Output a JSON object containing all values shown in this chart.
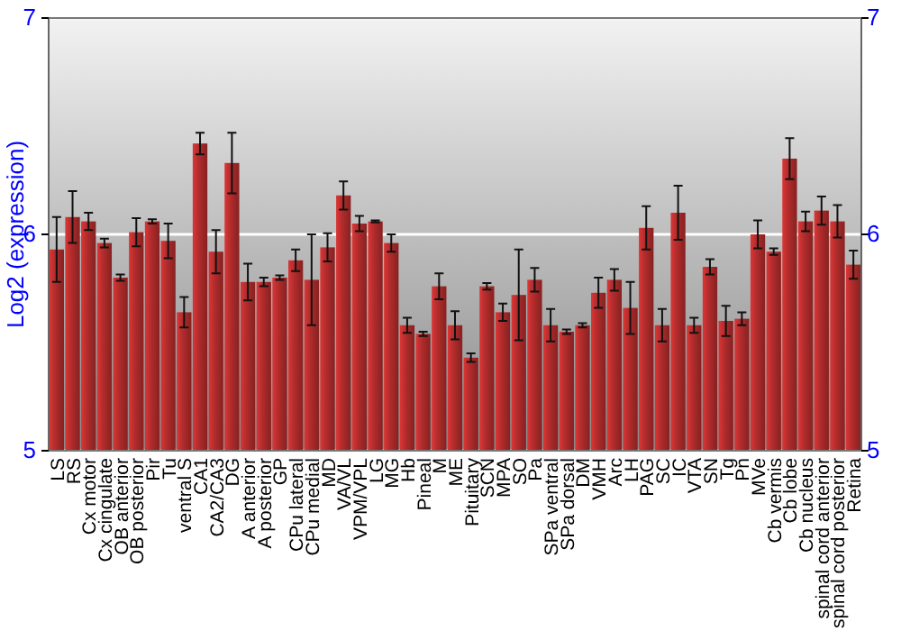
{
  "chart_data": {
    "type": "bar",
    "ylabel": "Log2 (expression)",
    "categories": [
      "LS",
      "RS",
      "Cx motor",
      "Cx cingulate",
      "OB anterior",
      "OB posterior",
      "Pir",
      "Tu",
      "ventral S",
      "CA1",
      "CA2/CA3",
      "DG",
      "A anterior",
      "A posterior",
      "GP",
      "CPu lateral",
      "CPu medial",
      "MD",
      "VA/VL",
      "VPM/VPL",
      "LG",
      "MG",
      "Hb",
      "Pineal",
      "M",
      "ME",
      "Pituitary",
      "SCN",
      "MPA",
      "SO",
      "Pa",
      "SPa ventral",
      "SPa dorsal",
      "DM",
      "VMH",
      "Arc",
      "LH",
      "PAG",
      "SC",
      "IC",
      "VTA",
      "SN",
      "Tg",
      "Pn",
      "MVe",
      "Cb vermis",
      "Cb lobe",
      "Cb nucleus",
      "spinal cord anterior",
      "spinal cord posterior",
      "Retina"
    ],
    "values": [
      5.93,
      6.08,
      6.06,
      5.96,
      5.8,
      6.01,
      6.06,
      5.97,
      5.64,
      6.42,
      5.92,
      6.33,
      5.78,
      5.78,
      5.8,
      5.88,
      5.79,
      5.94,
      6.18,
      6.05,
      6.06,
      5.96,
      5.58,
      5.54,
      5.76,
      5.58,
      5.43,
      5.76,
      5.64,
      5.72,
      5.79,
      5.58,
      5.55,
      5.58,
      5.73,
      5.79,
      5.66,
      6.03,
      5.58,
      6.1,
      5.58,
      5.85,
      5.6,
      5.61,
      6.0,
      5.92,
      6.35,
      6.06,
      6.11,
      6.06,
      5.86
    ],
    "errors": [
      0.15,
      0.12,
      0.04,
      0.02,
      0.015,
      0.065,
      0.01,
      0.08,
      0.07,
      0.05,
      0.1,
      0.14,
      0.085,
      0.02,
      0.01,
      0.05,
      0.21,
      0.065,
      0.065,
      0.035,
      0.005,
      0.04,
      0.035,
      0.01,
      0.06,
      0.065,
      0.02,
      0.015,
      0.04,
      0.21,
      0.055,
      0.075,
      0.01,
      0.01,
      0.07,
      0.05,
      0.12,
      0.1,
      0.075,
      0.125,
      0.035,
      0.035,
      0.07,
      0.03,
      0.065,
      0.015,
      0.095,
      0.045,
      0.065,
      0.075,
      0.065
    ],
    "color": "#b22c2c",
    "ylim": [
      5,
      7
    ],
    "yticks": [
      5,
      6,
      7
    ],
    "y2lim": [
      5,
      7
    ],
    "y2ticks": [
      5,
      6,
      7
    ],
    "grid": "y"
  }
}
